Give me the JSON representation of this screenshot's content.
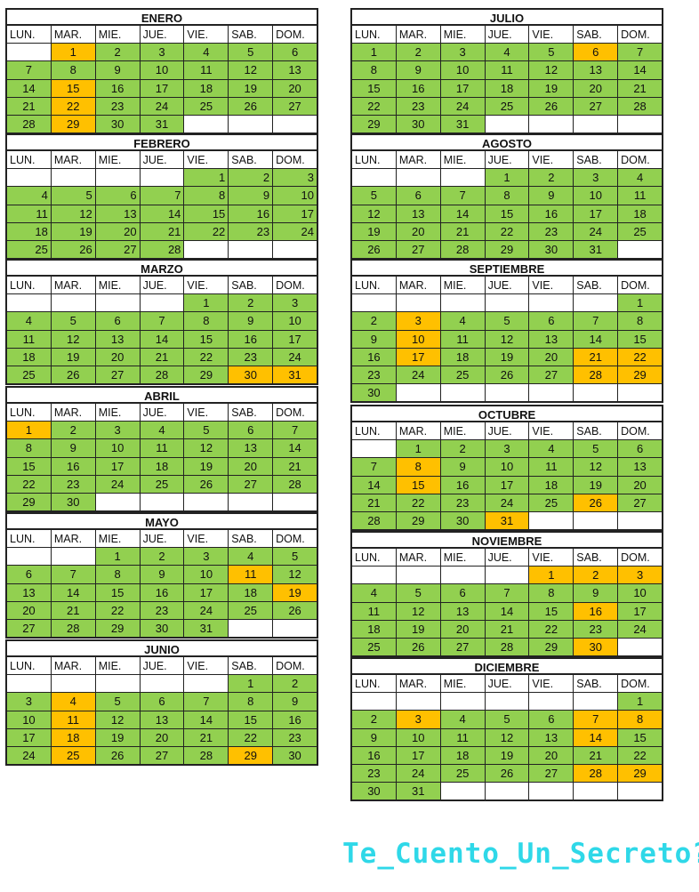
{
  "weekdays": [
    "LUN.",
    "MAR.",
    "MIE.",
    "JUE.",
    "VIE.",
    "SAB.",
    "DOM."
  ],
  "brand_text": "Te_Cuento_Un_Secreto?",
  "colors": {
    "workday": "#92d050",
    "holiday": "#ffc000",
    "empty": "#ffffff",
    "brand": "#2fd8e8"
  },
  "months": [
    {
      "name": "ENERO",
      "offset": 1,
      "days": 31,
      "holidays": [
        1,
        15,
        22,
        29
      ]
    },
    {
      "name": "FEBRERO",
      "offset": 4,
      "days": 28,
      "holidays": []
    },
    {
      "name": "MARZO",
      "offset": 4,
      "days": 31,
      "holidays": [
        30,
        31
      ]
    },
    {
      "name": "ABRIL",
      "offset": 0,
      "days": 30,
      "holidays": [
        1
      ]
    },
    {
      "name": "MAYO",
      "offset": 2,
      "days": 31,
      "holidays": [
        11,
        19
      ]
    },
    {
      "name": "JUNIO",
      "offset": 5,
      "days": 30,
      "holidays": [
        4,
        11,
        18,
        25,
        29
      ]
    },
    {
      "name": "JULIO",
      "offset": 0,
      "days": 31,
      "holidays": [
        6
      ]
    },
    {
      "name": "AGOSTO",
      "offset": 3,
      "days": 31,
      "holidays": []
    },
    {
      "name": "SEPTIEMBRE",
      "offset": 6,
      "days": 30,
      "holidays": [
        3,
        10,
        17,
        21,
        22,
        28,
        29
      ]
    },
    {
      "name": "OCTUBRE",
      "offset": 1,
      "days": 31,
      "holidays": [
        8,
        15,
        26,
        31
      ]
    },
    {
      "name": "NOVIEMBRE",
      "offset": 4,
      "days": 30,
      "holidays": [
        1,
        2,
        3,
        16,
        30
      ]
    },
    {
      "name": "DICIEMBRE",
      "offset": 6,
      "days": 31,
      "holidays": [
        3,
        7,
        8,
        14,
        28,
        29
      ]
    }
  ]
}
